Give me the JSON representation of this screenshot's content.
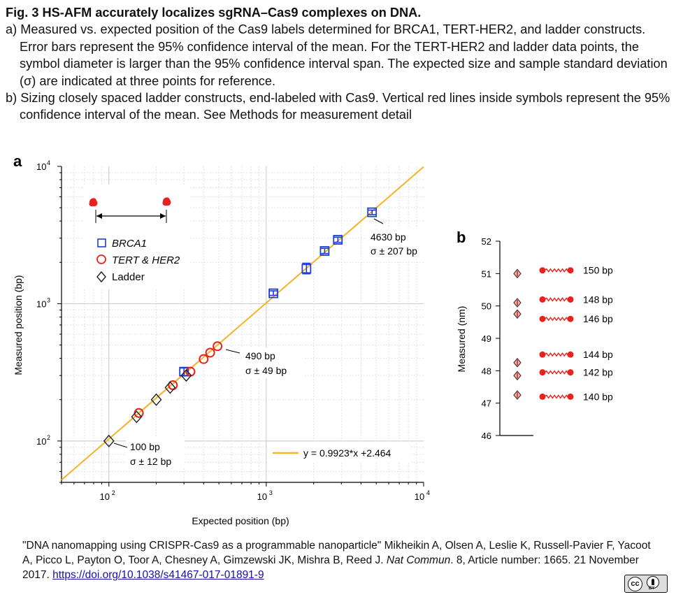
{
  "caption": {
    "title": "Fig. 3 HS-AFM accurately localizes sgRNA–Cas9 complexes on DNA.",
    "para_a": "a) Measured vs. expected position of the Cas9 labels determined for BRCA1, TERT-HER2, and ladder constructs. Error bars represent the 95% confidence interval of the mean. For the TERT-HER2 and ladder data points, the symbol diameter is larger than the 95% confidence interval span. The expected size and sample standard deviation (σ) are indicated at three points for reference.",
    "para_b": "b) Sizing closely spaced ladder constructs, end-labeled with Cas9. Vertical red lines inside symbols represent the 95% confidence interval of the mean. See Methods for measurement detail"
  },
  "panel_labels": {
    "a": "a",
    "b": "b"
  },
  "source": {
    "text": "\"DNA nanomapping using CRISPR-Cas9 as a programmable nanoparticle\" Mikheikin A, Olsen A, Leslie K, Russell-Pavier F, Yacoot A, Picco L, Payton O, Toor A, Chesney A, Gimzewski JK, Mishra B, Reed J. ",
    "journal": "Nat Commun",
    "rest": ". 8, Article number: 1665. 21 November 2017. ",
    "doi": "https://doi.org/10.1038/s41467-017-01891-9"
  },
  "license": {
    "cc": "cc",
    "by": "BY"
  },
  "colors": {
    "fit": "#f5b325",
    "brca1": "#1f3fd6",
    "tert": "#e8231f",
    "ladder": "#222222",
    "cas9": "#e8231f"
  },
  "chart_data": [
    {
      "type": "scatter",
      "panel": "a",
      "xlabel": "Expected position (bp)",
      "ylabel": "Measured position (bp)",
      "xscale": "log",
      "yscale": "log",
      "xlim": [
        50,
        10000
      ],
      "ylim": [
        50,
        10000
      ],
      "grid": true,
      "xticks": [
        {
          "base": "10",
          "exp": "2",
          "v": 100
        },
        {
          "base": "10",
          "exp": "3",
          "v": 1000
        },
        {
          "base": "10",
          "exp": "4",
          "v": 10000
        }
      ],
      "yticks": [
        {
          "base": "10",
          "exp": "2",
          "v": 100
        },
        {
          "base": "10",
          "exp": "3",
          "v": 1000
        },
        {
          "base": "10",
          "exp": "4",
          "v": 10000
        }
      ],
      "legend": {
        "placement": "top-left",
        "entries": [
          {
            "name": "BRCA1",
            "marker": "square",
            "color": "#1f3fd6"
          },
          {
            "name": "TERT & HER2",
            "marker": "circle",
            "color": "#e8231f"
          },
          {
            "name": "Ladder",
            "marker": "diamond",
            "color": "#222222"
          }
        ]
      },
      "fit": {
        "label": "y = 0.9923*x +2.464",
        "slope": 0.9923,
        "intercept": 2.464,
        "color": "#f5b325"
      },
      "series": [
        {
          "name": "BRCA1",
          "marker": "square",
          "color": "#1f3fd6",
          "points": [
            {
              "x": 300,
              "y": 320,
              "lo": 300,
              "hi": 340
            },
            {
              "x": 1110,
              "y": 1190,
              "lo": 1150,
              "hi": 1240
            },
            {
              "x": 1800,
              "y": 1800,
              "lo": 1650,
              "hi": 1970
            },
            {
              "x": 2350,
              "y": 2420,
              "lo": 2320,
              "hi": 2530
            },
            {
              "x": 2850,
              "y": 2920,
              "lo": 2800,
              "hi": 3050
            },
            {
              "x": 4700,
              "y": 4630,
              "lo": 4450,
              "hi": 4800
            }
          ]
        },
        {
          "name": "TERT & HER2",
          "marker": "circle",
          "color": "#e8231f",
          "points": [
            {
              "x": 155,
              "y": 160
            },
            {
              "x": 255,
              "y": 255
            },
            {
              "x": 330,
              "y": 320
            },
            {
              "x": 400,
              "y": 395
            },
            {
              "x": 440,
              "y": 440
            },
            {
              "x": 490,
              "y": 490
            }
          ]
        },
        {
          "name": "Ladder",
          "marker": "diamond",
          "color": "#222222",
          "points": [
            {
              "x": 100,
              "y": 100
            },
            {
              "x": 150,
              "y": 150
            },
            {
              "x": 200,
              "y": 200
            },
            {
              "x": 245,
              "y": 245
            },
            {
              "x": 310,
              "y": 300
            }
          ]
        }
      ],
      "annotations": [
        {
          "bp": "4630 bp",
          "sigma": "σ ± 207 bp",
          "x": 4630,
          "y": 4630
        },
        {
          "bp": "490 bp",
          "sigma": "σ ± 49 bp",
          "x": 490,
          "y": 490
        },
        {
          "bp": "100 bp",
          "sigma": "σ ± 12 bp",
          "x": 100,
          "y": 100
        }
      ]
    },
    {
      "type": "scatter",
      "panel": "b",
      "ylabel": "Measured (nm)",
      "ylim": [
        46,
        52
      ],
      "yticks": [
        46,
        47,
        48,
        49,
        50,
        51,
        52
      ],
      "series": [
        {
          "name": "",
          "marker": "diamond",
          "color": "#e8231f",
          "points": [
            {
              "label": "150 bp",
              "y": 51.0
            },
            {
              "label": "148 bp",
              "y": 50.1
            },
            {
              "label": "146 bp",
              "y": 49.75
            },
            {
              "label": "144 bp",
              "y": 48.25
            },
            {
              "label": "142 bp",
              "y": 47.85
            },
            {
              "label": "140 bp",
              "y": 47.25
            }
          ]
        }
      ],
      "construct_labels": [
        {
          "label": "150 bp",
          "y": 51.1
        },
        {
          "label": "148 bp",
          "y": 50.2
        },
        {
          "label": "146 bp",
          "y": 49.6
        },
        {
          "label": "144 bp",
          "y": 48.5
        },
        {
          "label": "142 bp",
          "y": 47.95
        },
        {
          "label": "140 bp",
          "y": 47.2
        }
      ]
    }
  ]
}
